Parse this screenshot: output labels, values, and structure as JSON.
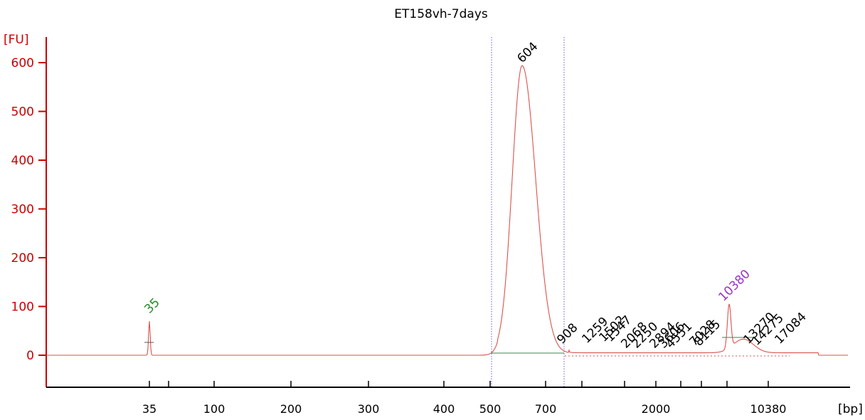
{
  "chart_data": {
    "type": "line",
    "title": "ET158vh-7days",
    "y_unit": "[FU]",
    "x_unit": "[bp]",
    "ylim": [
      -60,
      650
    ],
    "y_ticks": [
      0,
      100,
      200,
      300,
      400,
      500,
      600
    ],
    "x_ticks": [
      {
        "label": "35"
      },
      {
        "label": ""
      },
      {
        "label": "100"
      },
      {
        "label": "200"
      },
      {
        "label": "300"
      },
      {
        "label": "400"
      },
      {
        "label": "500"
      },
      {
        "label": "700"
      },
      {
        "label": ""
      },
      {
        "label": ""
      },
      {
        "label": "2000"
      },
      {
        "label": ""
      },
      {
        "label": ""
      },
      {
        "label": ""
      },
      {
        "label": "10380"
      }
    ],
    "peaks": [
      {
        "label": "35",
        "color": "#228b22"
      },
      {
        "label": "604",
        "color": "#000000"
      },
      {
        "label": "908",
        "color": "#000000"
      },
      {
        "label": "1259",
        "color": "#000000"
      },
      {
        "label": "1502",
        "color": "#000000"
      },
      {
        "label": "1547",
        "color": "#000000"
      },
      {
        "label": "2068",
        "color": "#000000"
      },
      {
        "label": "2250",
        "color": "#000000"
      },
      {
        "label": "2894",
        "color": "#000000"
      },
      {
        "label": "3606",
        "color": "#000000"
      },
      {
        "label": "4551",
        "color": "#000000"
      },
      {
        "label": "7028",
        "color": "#000000"
      },
      {
        "label": "8115",
        "color": "#000000"
      },
      {
        "label": "10380",
        "color": "#9932cc"
      },
      {
        "label": "13270",
        "color": "#000000"
      },
      {
        "label": "14275",
        "color": "#000000"
      },
      {
        "label": "17084",
        "color": "#000000"
      }
    ],
    "colors": {
      "axis": "#cc0000",
      "trace": "#d9534f",
      "baseline": "#2e8b57",
      "region": "#6a5acd"
    }
  }
}
